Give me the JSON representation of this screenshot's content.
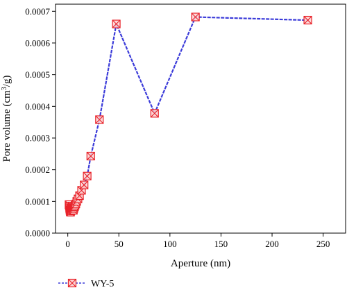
{
  "chart_data": {
    "type": "line",
    "title": "",
    "xlabel": "Aperture (nm)",
    "ylabel_main": "Pore volume (cm",
    "ylabel_sup": "3",
    "ylabel_tail": "/g)",
    "xlim": [
      -12,
      272
    ],
    "ylim": [
      0,
      0.0007225
    ],
    "xticks": [
      0,
      50,
      100,
      150,
      200,
      250
    ],
    "xtick_labels": [
      "0",
      "50",
      "100",
      "150",
      "200",
      "250"
    ],
    "yticks": [
      0,
      0.0001,
      0.0002,
      0.0003,
      0.0004,
      0.0005,
      0.0006,
      0.0007
    ],
    "ytick_labels": [
      "0.0000",
      "0.0001",
      "0.0002",
      "0.0003",
      "0.0004",
      "0.0005",
      "0.0006",
      "0.0007"
    ],
    "grid": false,
    "legend_position": "bottom-left",
    "series": [
      {
        "name": "WY-5",
        "line_color": "#3b3bd9",
        "marker_color": "#e8232a",
        "marker": "square-x",
        "x": [
          1.2,
          1.5,
          1.8,
          2.1,
          2.4,
          2.7,
          3.0,
          3.3,
          3.6,
          3.9,
          4.3,
          4.7,
          5.1,
          5.5,
          6.0,
          6.6,
          7.2,
          7.9,
          8.8,
          10.0,
          11.5,
          13.5,
          16.0,
          19.0,
          22.5,
          31.0,
          47.5,
          85.0,
          125.0,
          235.0
        ],
        "y": [
          9e-05,
          8.5e-05,
          7.8e-05,
          7.2e-05,
          6.8e-05,
          6.6e-05,
          7e-05,
          7.4e-05,
          7.8e-05,
          8.2e-05,
          8.5e-05,
          8e-05,
          7.5e-05,
          7.2e-05,
          7.8e-05,
          8.3e-05,
          8.8e-05,
          9.2e-05,
          0.0001,
          0.000108,
          0.000118,
          0.000135,
          0.000152,
          0.00018,
          0.000243,
          0.000358,
          0.00066,
          0.000378,
          0.000682,
          0.000672
        ]
      }
    ]
  }
}
